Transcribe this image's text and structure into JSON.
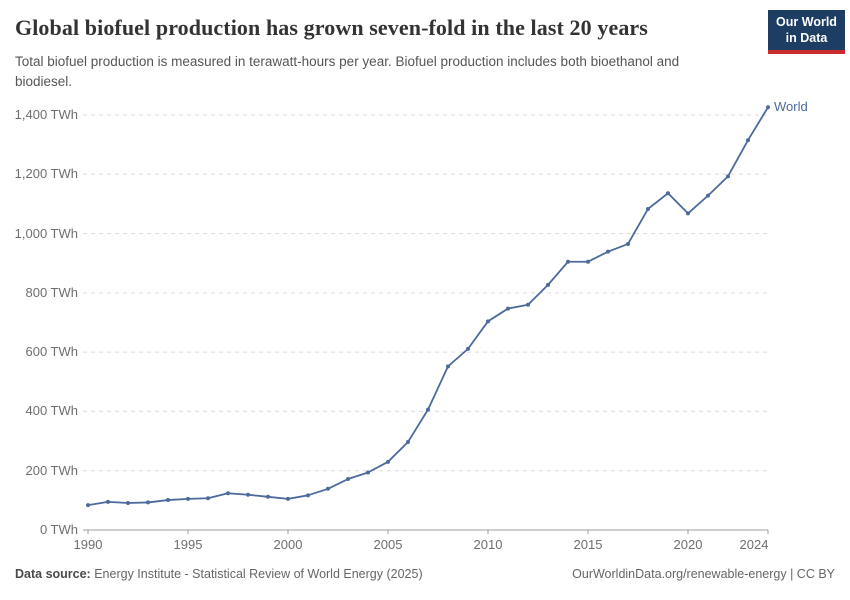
{
  "header": {
    "title": "Global biofuel production has grown seven-fold in the last 20 years",
    "subtitle": "Total biofuel production is measured in terawatt-hours per year. Biofuel production includes both bioethanol and biodiesel.",
    "logo": {
      "line1": "Our World",
      "line2": "in Data",
      "bg_color": "#1d3d63",
      "accent_color": "#cb2a2f"
    }
  },
  "chart_data": {
    "type": "line",
    "title": "Global biofuel production has grown seven-fold in the last 20 years",
    "unit": "TWh",
    "xlabel": "",
    "ylabel": "TWh per year",
    "x": [
      1990,
      1991,
      1992,
      1993,
      1994,
      1995,
      1996,
      1997,
      1998,
      1999,
      2000,
      2001,
      2002,
      2003,
      2004,
      2005,
      2006,
      2007,
      2008,
      2009,
      2010,
      2011,
      2012,
      2013,
      2014,
      2015,
      2016,
      2017,
      2018,
      2019,
      2020,
      2021,
      2022,
      2023,
      2024
    ],
    "series": [
      {
        "name": "World",
        "color": "#4c6a9c",
        "values": [
          84,
          95,
          91,
          93,
          101,
          105,
          107,
          124,
          119,
          112,
          105,
          117,
          139,
          172,
          194,
          230,
          297,
          406,
          552,
          611,
          704,
          747,
          760,
          827,
          905,
          905,
          939,
          965,
          1083,
          1136,
          1068,
          1128,
          1193,
          1315,
          1426
        ]
      }
    ],
    "x_ticks": [
      1990,
      1995,
      2000,
      2005,
      2010,
      2015,
      2020,
      2024
    ],
    "y_ticks": [
      0,
      200,
      400,
      600,
      800,
      1000,
      1200,
      1400
    ],
    "y_tick_labels": [
      "0 TWh",
      "200 TWh",
      "400 TWh",
      "600 TWh",
      "800 TWh",
      "1,000 TWh",
      "1,200 TWh",
      "1,400 TWh"
    ],
    "xlim": [
      1990,
      2024
    ],
    "ylim": [
      0,
      1450
    ],
    "grid": "horizontal-dashed",
    "grid_color": "#dcdcdc",
    "axis_color": "#9e9e9e",
    "tick_text_color": "#6e6e6e",
    "legend": "end-of-line-label",
    "end_label": "World"
  },
  "footer": {
    "source_label": "Data source:",
    "source_text": "Energy Institute - Statistical Review of World Energy (2025)",
    "right_text": "OurWorldinData.org/renewable-energy | CC BY"
  }
}
